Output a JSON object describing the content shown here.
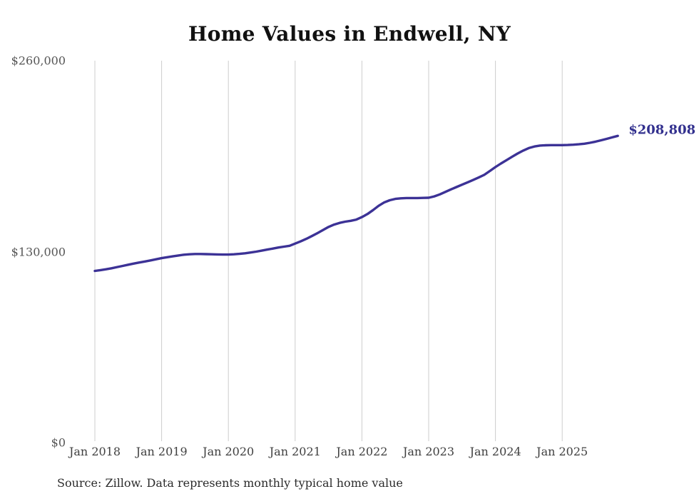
{
  "chart_data": {
    "type": "line",
    "title": "Home Values in Endwell, NY",
    "series_name": "Monthly typical home value",
    "x": [
      "2018-01",
      "2018-02",
      "2018-03",
      "2018-04",
      "2018-05",
      "2018-06",
      "2018-07",
      "2018-08",
      "2018-09",
      "2018-10",
      "2018-11",
      "2018-12",
      "2019-01",
      "2019-02",
      "2019-03",
      "2019-04",
      "2019-05",
      "2019-06",
      "2019-07",
      "2019-08",
      "2019-09",
      "2019-10",
      "2019-11",
      "2019-12",
      "2020-01",
      "2020-02",
      "2020-03",
      "2020-04",
      "2020-05",
      "2020-06",
      "2020-07",
      "2020-08",
      "2020-09",
      "2020-10",
      "2020-11",
      "2020-12",
      "2021-01",
      "2021-02",
      "2021-03",
      "2021-04",
      "2021-05",
      "2021-06",
      "2021-07",
      "2021-08",
      "2021-09",
      "2021-10",
      "2021-11",
      "2021-12",
      "2022-01",
      "2022-02",
      "2022-03",
      "2022-04",
      "2022-05",
      "2022-06",
      "2022-07",
      "2022-08",
      "2022-09",
      "2022-10",
      "2022-11",
      "2022-12",
      "2023-01",
      "2023-02",
      "2023-03",
      "2023-04",
      "2023-05",
      "2023-06",
      "2023-07",
      "2023-08",
      "2023-09",
      "2023-10",
      "2023-11",
      "2023-12",
      "2024-01",
      "2024-02",
      "2024-03",
      "2024-04",
      "2024-05",
      "2024-06",
      "2024-07",
      "2024-08",
      "2024-09",
      "2024-10",
      "2024-11",
      "2024-12",
      "2025-01",
      "2025-02",
      "2025-03",
      "2025-04",
      "2025-05",
      "2025-06",
      "2025-07",
      "2025-08",
      "2025-09",
      "2025-10",
      "2025-11"
    ],
    "values": [
      116900,
      117400,
      118000,
      118700,
      119500,
      120300,
      121100,
      121900,
      122600,
      123300,
      124000,
      124800,
      125600,
      126200,
      126800,
      127400,
      127900,
      128200,
      128400,
      128400,
      128300,
      128200,
      128100,
      128000,
      128000,
      128200,
      128500,
      128900,
      129400,
      130000,
      130700,
      131400,
      132100,
      132800,
      133400,
      134000,
      135500,
      137000,
      138700,
      140600,
      142600,
      144700,
      146800,
      148400,
      149600,
      150400,
      151000,
      151800,
      153500,
      155600,
      158300,
      161200,
      163500,
      165000,
      165900,
      166300,
      166500,
      166500,
      166500,
      166600,
      166700,
      167600,
      169000,
      170700,
      172400,
      174000,
      175600,
      177200,
      178800,
      180500,
      182300,
      184900,
      187600,
      190000,
      192300,
      194600,
      196800,
      198800,
      200500,
      201600,
      202200,
      202400,
      202500,
      202500,
      202500,
      202600,
      202800,
      203100,
      203500,
      204100,
      204900,
      205800,
      206800,
      207800,
      208808
    ],
    "latest_value": 208808,
    "end_label": "$208,808",
    "x_tick_labels": [
      "Jan 2018",
      "Jan 2019",
      "Jan 2020",
      "Jan 2021",
      "Jan 2022",
      "Jan 2023",
      "Jan 2024",
      "Jan 2025"
    ],
    "y_ticks": [
      260000,
      130000,
      0
    ],
    "y_tick_labels": [
      "$260,000",
      "$130,000",
      "$0"
    ],
    "ylim": [
      0,
      260000
    ],
    "grid": "vertical-yearly",
    "legend": "none",
    "colors": {
      "line": "#3c3296",
      "end_label": "#32308e",
      "grid": "#cccccc",
      "y_axis_text": "#565656",
      "x_axis_text": "#3f3f3f",
      "title": "#111111",
      "source_text": "#2b2b2b"
    }
  },
  "source_note": "Source: Zillow. Data represents monthly typical home value"
}
